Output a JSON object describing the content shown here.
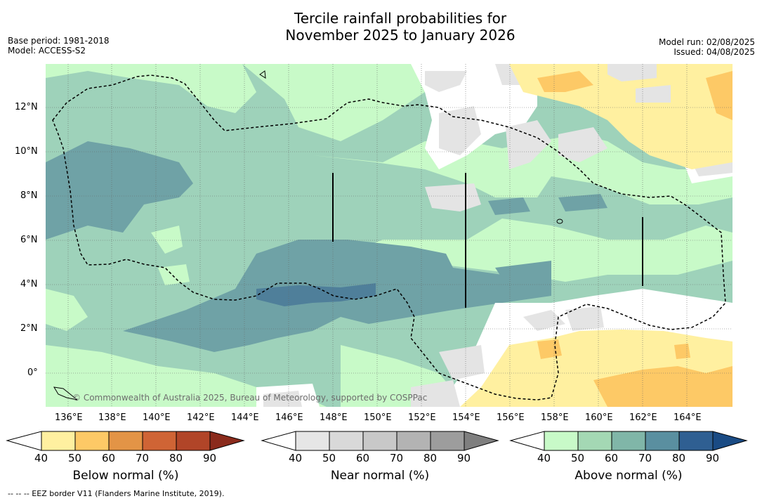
{
  "title_line1": "Tercile rainfall probabilities for",
  "title_line2": "November 2025 to January 2026",
  "meta_left": [
    "Base period: 1981-2018",
    "Model: ACCESS-S2"
  ],
  "meta_right": [
    "Model run: 02/08/2025",
    "Issued: 04/08/2025"
  ],
  "lon_labels": [
    "136°E",
    "138°E",
    "140°E",
    "142°E",
    "144°E",
    "146°E",
    "148°E",
    "150°E",
    "152°E",
    "154°E",
    "156°E",
    "158°E",
    "160°E",
    "162°E",
    "164°E"
  ],
  "lat_labels": [
    "12°N",
    "10°N",
    "8°N",
    "6°N",
    "4°N",
    "2°N",
    "0°"
  ],
  "copyright": "© Commonwealth of Australia 2025, Bureau of Meteorology, supported by COSPPac",
  "colorbars": [
    {
      "title": "Below normal (%)",
      "ticks": [
        "40",
        "50",
        "60",
        "70",
        "80",
        "90"
      ],
      "colors": [
        "#fff0a0",
        "#fdc966",
        "#e39446",
        "#cf6435",
        "#b14528",
        "#8b2b1c"
      ]
    },
    {
      "title": "Near normal (%)",
      "ticks": [
        "40",
        "50",
        "60",
        "70",
        "80",
        "90"
      ],
      "colors": [
        "#e6e6e6",
        "#d9d9d9",
        "#c8c8c8",
        "#b3b3b3",
        "#9d9d9d",
        "#7f7f7f"
      ]
    },
    {
      "title": "Above normal (%)",
      "ticks": [
        "40",
        "50",
        "60",
        "70",
        "80",
        "90"
      ],
      "colors": [
        "#c8fac8",
        "#a4d8b4",
        "#80b6a8",
        "#5a8fa0",
        "#2f5f92",
        "#1a4b84"
      ]
    }
  ],
  "footnote": "--  --  -- EEZ border V11 (Flanders Marine Institute, 2019)."
}
